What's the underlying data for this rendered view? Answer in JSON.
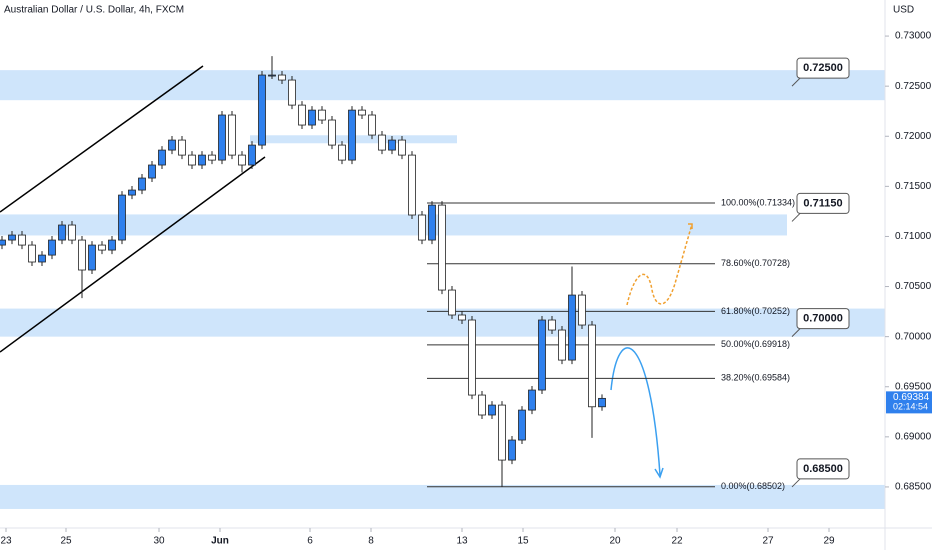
{
  "chart_data": {
    "type": "candlestick",
    "title": "Australian Dollar / U.S. Dollar, 4h, FXCM",
    "currency": "USD",
    "ylim": [
      0.6817,
      0.7336
    ],
    "yticks": [
      {
        "value": 0.73,
        "label": "0.73000"
      },
      {
        "value": 0.725,
        "label": "0.72500"
      },
      {
        "value": 0.72,
        "label": "0.72000"
      },
      {
        "value": 0.715,
        "label": "0.71500"
      },
      {
        "value": 0.71,
        "label": "0.71000"
      },
      {
        "value": 0.705,
        "label": "0.70500"
      },
      {
        "value": 0.7,
        "label": "0.70000"
      },
      {
        "value": 0.695,
        "label": "0.69500"
      },
      {
        "value": 0.69,
        "label": "0.69000"
      },
      {
        "value": 0.685,
        "label": "0.68500"
      }
    ],
    "xlim": [
      -0.2,
      88.3
    ],
    "xticks": [
      {
        "value": 0.4,
        "label": "23"
      },
      {
        "value": 6.4,
        "label": "25"
      },
      {
        "value": 15.7,
        "label": "30"
      },
      {
        "value": 21.8,
        "label": "Jun"
      },
      {
        "value": 30.8,
        "label": "6"
      },
      {
        "value": 36.9,
        "label": "8"
      },
      {
        "value": 46,
        "label": "13"
      },
      {
        "value": 52.1,
        "label": "15"
      },
      {
        "value": 61.3,
        "label": "20"
      },
      {
        "value": 67.5,
        "label": "22"
      },
      {
        "value": 76.6,
        "label": "27"
      },
      {
        "value": 82.7,
        "label": "29"
      }
    ],
    "up_color": "#2f80ed",
    "down_color": "#ffffff",
    "candles": [
      [
        0.70914,
        0.71004,
        0.70874,
        0.70964
      ],
      [
        0.70964,
        0.71054,
        0.70924,
        0.71014
      ],
      [
        0.71014,
        0.71054,
        0.70874,
        0.70914
      ],
      [
        0.70914,
        0.70954,
        0.70705,
        0.70745
      ],
      [
        0.70745,
        0.70854,
        0.70705,
        0.70814
      ],
      [
        0.70814,
        0.71004,
        0.70774,
        0.70964
      ],
      [
        0.70964,
        0.71154,
        0.70924,
        0.71114
      ],
      [
        0.71114,
        0.71154,
        0.70924,
        0.70964
      ],
      [
        0.70964,
        0.71004,
        0.70385,
        0.70665
      ],
      [
        0.70665,
        0.70954,
        0.70625,
        0.70914
      ],
      [
        0.70914,
        0.70954,
        0.70824,
        0.70864
      ],
      [
        0.70864,
        0.71004,
        0.70824,
        0.70964
      ],
      [
        0.70964,
        0.71453,
        0.70924,
        0.71413
      ],
      [
        0.71413,
        0.71503,
        0.71373,
        0.71463
      ],
      [
        0.71463,
        0.71623,
        0.71423,
        0.71583
      ],
      [
        0.71583,
        0.71753,
        0.71543,
        0.71713
      ],
      [
        0.71713,
        0.71902,
        0.71673,
        0.71862
      ],
      [
        0.71862,
        0.72002,
        0.71822,
        0.71962
      ],
      [
        0.71962,
        0.72002,
        0.71772,
        0.71812
      ],
      [
        0.71812,
        0.71852,
        0.71673,
        0.71713
      ],
      [
        0.71713,
        0.71852,
        0.71673,
        0.71812
      ],
      [
        0.71812,
        0.71852,
        0.71722,
        0.71762
      ],
      [
        0.71762,
        0.72252,
        0.71722,
        0.72212
      ],
      [
        0.72212,
        0.72252,
        0.71772,
        0.71812
      ],
      [
        0.71812,
        0.71852,
        0.7164,
        0.71713
      ],
      [
        0.71713,
        0.71952,
        0.71673,
        0.71912
      ],
      [
        0.71912,
        0.72651,
        0.71872,
        0.72611
      ],
      [
        0.72611,
        0.728,
        0.72571,
        0.72611
      ],
      [
        0.72611,
        0.72651,
        0.72521,
        0.72561
      ],
      [
        0.72561,
        0.72601,
        0.72271,
        0.72311
      ],
      [
        0.72311,
        0.72351,
        0.72072,
        0.72112
      ],
      [
        0.72112,
        0.72301,
        0.72072,
        0.72261
      ],
      [
        0.72261,
        0.72301,
        0.72122,
        0.72162
      ],
      [
        0.72162,
        0.72202,
        0.71872,
        0.71912
      ],
      [
        0.71912,
        0.71952,
        0.71722,
        0.71762
      ],
      [
        0.71762,
        0.72301,
        0.71722,
        0.72261
      ],
      [
        0.72261,
        0.72301,
        0.72172,
        0.72212
      ],
      [
        0.72212,
        0.72252,
        0.71972,
        0.72012
      ],
      [
        0.72012,
        0.72052,
        0.71822,
        0.71862
      ],
      [
        0.71862,
        0.72002,
        0.71822,
        0.71962
      ],
      [
        0.71962,
        0.72002,
        0.71772,
        0.71812
      ],
      [
        0.71812,
        0.71852,
        0.71174,
        0.71214
      ],
      [
        0.71214,
        0.71254,
        0.70924,
        0.70964
      ],
      [
        0.70964,
        0.71353,
        0.70924,
        0.71313
      ],
      [
        0.71313,
        0.71353,
        0.70425,
        0.70465
      ],
      [
        0.70465,
        0.70505,
        0.70176,
        0.70216
      ],
      [
        0.70216,
        0.70256,
        0.70126,
        0.70166
      ],
      [
        0.70166,
        0.70206,
        0.69377,
        0.69417
      ],
      [
        0.69417,
        0.69457,
        0.69178,
        0.69218
      ],
      [
        0.69218,
        0.69357,
        0.69178,
        0.69317
      ],
      [
        0.69317,
        0.69357,
        0.68502,
        0.68768
      ],
      [
        0.68768,
        0.69008,
        0.68728,
        0.68968
      ],
      [
        0.68968,
        0.69307,
        0.68928,
        0.69267
      ],
      [
        0.69267,
        0.69507,
        0.69227,
        0.69467
      ],
      [
        0.69467,
        0.70206,
        0.69427,
        0.70166
      ],
      [
        0.70166,
        0.70206,
        0.70026,
        0.70066
      ],
      [
        0.70066,
        0.70106,
        0.69726,
        0.69766
      ],
      [
        0.69766,
        0.707,
        0.69726,
        0.70415
      ],
      [
        0.70415,
        0.70455,
        0.70076,
        0.70116
      ],
      [
        0.70116,
        0.70156,
        0.6899,
        0.693
      ],
      [
        0.693,
        0.69424,
        0.6926,
        0.69384
      ]
    ],
    "zones": [
      {
        "low": 0.7236,
        "high": 0.7266
      },
      {
        "low": 0.7193,
        "high": 0.7201,
        "x": [
          24.8,
          45.5
        ]
      },
      {
        "low": 0.7101,
        "high": 0.7122,
        "x": [
          -0.2,
          78.5
        ]
      },
      {
        "low": 0.7,
        "high": 0.7028
      },
      {
        "low": 0.6828,
        "high": 0.6852
      }
    ],
    "fib_x": [
      42.5,
      71.3
    ],
    "fib_levels": [
      {
        "value": 0.71334,
        "label": "100.00%(0.71334)"
      },
      {
        "value": 0.70728,
        "label": "78.60%(0.70728)"
      },
      {
        "value": 0.70252,
        "label": "61.80%(0.70252)"
      },
      {
        "value": 0.69918,
        "label": "50.00%(0.69918)"
      },
      {
        "value": 0.69584,
        "label": "38.20%(0.69584)"
      },
      {
        "value": 0.68502,
        "label": "0.00%(0.68502)"
      }
    ],
    "price_callouts": [
      {
        "value": 0.725,
        "label": "0.72500"
      },
      {
        "value": 0.7115,
        "label": "0.71150"
      },
      {
        "value": 0.7,
        "label": "0.70000"
      },
      {
        "value": 0.685,
        "label": "0.68500"
      }
    ],
    "last_price": {
      "value": 0.69384,
      "label": "0.69384"
    },
    "countdown": "02:14:54"
  }
}
